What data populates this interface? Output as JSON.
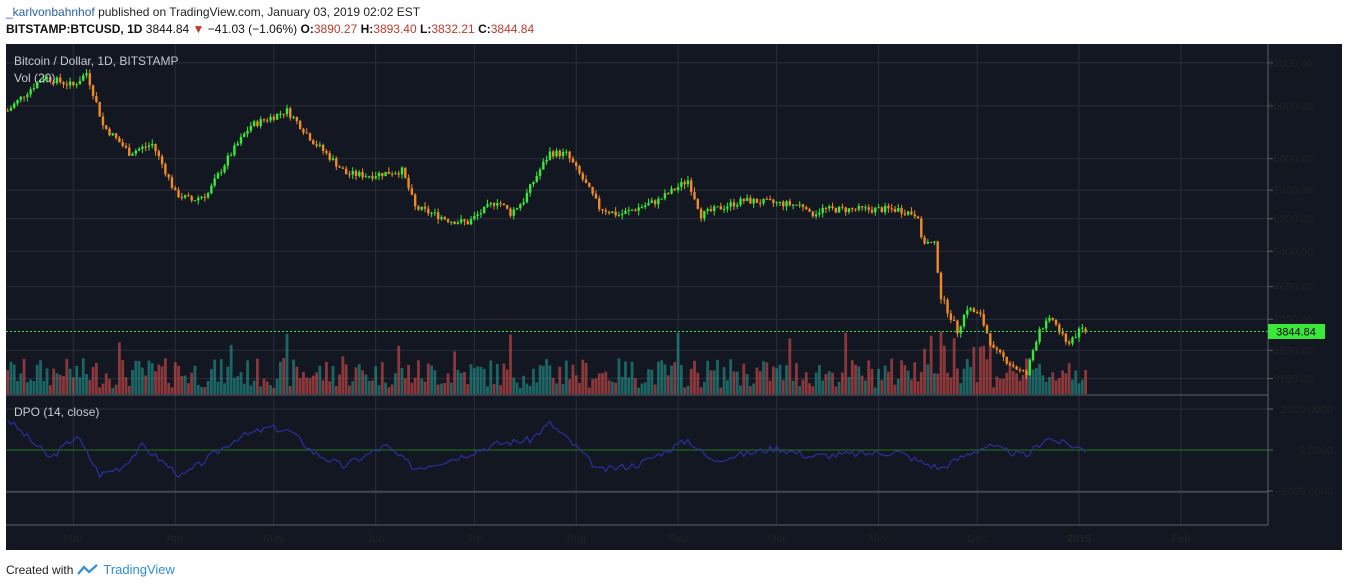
{
  "header": {
    "author": "_karlvonbahnhof",
    "published": "published on TradingView.com, January 03, 2019 02:02 EST",
    "symbol": "BITSTAMP:BTCUSD, 1D",
    "last": "3844.84",
    "change": "−41.03 (−1.06%)",
    "o_label": "O:",
    "o_val": "3890.27",
    "h_label": "H:",
    "h_val": "3893.40",
    "l_label": "L:",
    "l_val": "3832.21",
    "c_label": "C:",
    "c_val": "3844.84"
  },
  "footer": {
    "created": "Created with",
    "brand": "TradingView"
  },
  "colors": {
    "background": "#131722",
    "grid": "#2a2e39",
    "up": "#39e839",
    "down": "#f08a24",
    "vol_up": "#26a69a",
    "vol_down": "#ef5350",
    "dpo": "#2a2f9e",
    "last_price_line": "#39e839"
  },
  "chart_data": [
    {
      "type": "candlestick",
      "title": "Bitcoin / Dollar, 1D, BITSTAMP",
      "volume_label": "Vol (20)",
      "y_scale": "log",
      "y_ticks": [
        12000,
        10000,
        8000,
        7000,
        6200,
        5400,
        4650,
        4050,
        3550,
        3150
      ],
      "y_tick_labels": [
        "12000.00",
        "10000.00",
        "8000.00",
        "7000.00",
        "6200.00",
        "5400.00",
        "4650.00",
        "4050.00",
        "3550.00",
        "3150.00"
      ],
      "x_tick_labels": [
        "Mar",
        "Apr",
        "May",
        "Jun",
        "Jul",
        "Aug",
        "Sep",
        "Oct",
        "Nov",
        "Dec",
        "2019",
        "Feb"
      ],
      "last_price": 3844.84,
      "last_price_label": "3844.84",
      "x_range": [
        "2018-02-09",
        "2019-02-28"
      ],
      "anchors": [
        [
          "2018-02-09",
          9800
        ],
        [
          "2018-02-20",
          11300
        ],
        [
          "2018-03-01",
          10900
        ],
        [
          "2018-03-05",
          11500
        ],
        [
          "2018-03-10",
          9200
        ],
        [
          "2018-03-18",
          8200
        ],
        [
          "2018-03-25",
          8500
        ],
        [
          "2018-04-01",
          6900
        ],
        [
          "2018-04-06",
          6700
        ],
        [
          "2018-04-11",
          6900
        ],
        [
          "2018-04-17",
          8000
        ],
        [
          "2018-04-24",
          9200
        ],
        [
          "2018-05-05",
          9800
        ],
        [
          "2018-05-13",
          8600
        ],
        [
          "2018-05-23",
          7500
        ],
        [
          "2018-05-30",
          7450
        ],
        [
          "2018-06-09",
          7600
        ],
        [
          "2018-06-13",
          6500
        ],
        [
          "2018-06-24",
          6150
        ],
        [
          "2018-06-29",
          6100
        ],
        [
          "2018-07-08",
          6700
        ],
        [
          "2018-07-12",
          6350
        ],
        [
          "2018-07-16",
          6700
        ],
        [
          "2018-07-24",
          8200
        ],
        [
          "2018-07-29",
          8150
        ],
        [
          "2018-08-08",
          6500
        ],
        [
          "2018-08-14",
          6300
        ],
        [
          "2018-08-26",
          6700
        ],
        [
          "2018-09-04",
          7300
        ],
        [
          "2018-09-08",
          6300
        ],
        [
          "2018-09-14",
          6500
        ],
        [
          "2018-09-21",
          6700
        ],
        [
          "2018-10-10",
          6550
        ],
        [
          "2018-10-11",
          6300
        ],
        [
          "2018-10-15",
          6450
        ],
        [
          "2018-11-07",
          6450
        ],
        [
          "2018-11-13",
          6300
        ],
        [
          "2018-11-14",
          5650
        ],
        [
          "2018-11-18",
          5550
        ],
        [
          "2018-11-20",
          4450
        ],
        [
          "2018-11-25",
          3850
        ],
        [
          "2018-11-28",
          4250
        ],
        [
          "2018-12-02",
          4100
        ],
        [
          "2018-12-06",
          3550
        ],
        [
          "2018-12-14",
          3250
        ],
        [
          "2018-12-16",
          3200
        ],
        [
          "2018-12-20",
          3900
        ],
        [
          "2018-12-24",
          4050
        ],
        [
          "2018-12-28",
          3650
        ],
        [
          "2019-01-02",
          3886
        ],
        [
          "2019-01-03",
          3845
        ]
      ]
    },
    {
      "type": "line",
      "title": "DPO (14, close)",
      "y_ticks": [
        2000,
        0,
        -2000
      ],
      "y_tick_labels": [
        "2000.0000",
        "0.0000",
        "−2000.0000"
      ],
      "baseline": 0,
      "anchors": [
        [
          "2018-02-09",
          1500
        ],
        [
          "2018-02-22",
          -400
        ],
        [
          "2018-03-02",
          700
        ],
        [
          "2018-03-09",
          -1200
        ],
        [
          "2018-03-16",
          -800
        ],
        [
          "2018-03-22",
          200
        ],
        [
          "2018-04-03",
          -1300
        ],
        [
          "2018-04-11",
          -400
        ],
        [
          "2018-04-20",
          600
        ],
        [
          "2018-04-30",
          1100
        ],
        [
          "2018-05-06",
          900
        ],
        [
          "2018-05-13",
          -100
        ],
        [
          "2018-05-22",
          -800
        ],
        [
          "2018-06-04",
          200
        ],
        [
          "2018-06-13",
          -900
        ],
        [
          "2018-06-25",
          -400
        ],
        [
          "2018-07-08",
          300
        ],
        [
          "2018-07-18",
          500
        ],
        [
          "2018-07-24",
          1300
        ],
        [
          "2018-07-31",
          300
        ],
        [
          "2018-08-08",
          -1000
        ],
        [
          "2018-08-20",
          -700
        ],
        [
          "2018-09-04",
          500
        ],
        [
          "2018-09-11",
          -500
        ],
        [
          "2018-10-01",
          100
        ],
        [
          "2018-10-11",
          -300
        ],
        [
          "2018-11-07",
          -100
        ],
        [
          "2018-11-14",
          -600
        ],
        [
          "2018-11-20",
          -900
        ],
        [
          "2018-11-28",
          -200
        ],
        [
          "2018-12-04",
          200
        ],
        [
          "2018-12-16",
          -300
        ],
        [
          "2018-12-22",
          600
        ],
        [
          "2019-01-03",
          0
        ]
      ]
    }
  ]
}
